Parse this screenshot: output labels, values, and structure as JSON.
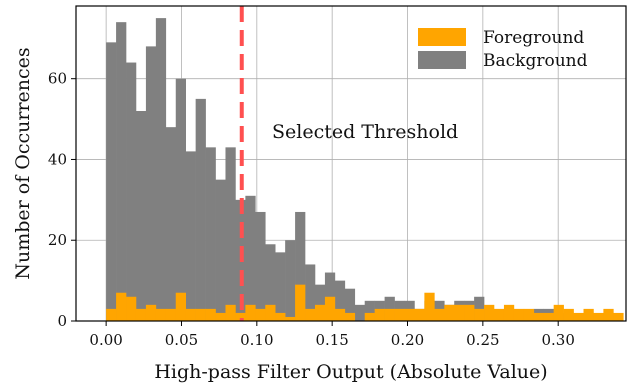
{
  "chart_data": {
    "type": "histogram",
    "xlabel": "High-pass Filter Output (Absolute Value)",
    "ylabel": "Number of Occurrences",
    "xlim": [
      -0.02,
      0.345
    ],
    "ylim": [
      0,
      78
    ],
    "xticks": [
      0.0,
      0.05,
      0.1,
      0.15,
      0.2,
      0.25,
      0.3
    ],
    "xtick_labels": [
      "0.00",
      "0.05",
      "0.10",
      "0.15",
      "0.20",
      "0.25",
      "0.30"
    ],
    "yticks": [
      0,
      20,
      40,
      60
    ],
    "ytick_labels": [
      "0",
      "20",
      "40",
      "60"
    ],
    "grid": true,
    "legend_position": "top-right",
    "bin_width": 0.0066,
    "bin_start": 0.0,
    "series": [
      {
        "name": "Background",
        "color": "#808080",
        "values": [
          69,
          74,
          64,
          52,
          68,
          75,
          48,
          60,
          42,
          55,
          43,
          35,
          43,
          30,
          31,
          27,
          19,
          17,
          20,
          27,
          14,
          9,
          12,
          10,
          8,
          4,
          5,
          5,
          6,
          5,
          5,
          3,
          5,
          5,
          4,
          5,
          5,
          6,
          3,
          2,
          3,
          2,
          2,
          3,
          3,
          2,
          2,
          1,
          2,
          1,
          0,
          0,
          0,
          0,
          0
        ]
      },
      {
        "name": "Foreground",
        "color": "#ffa500",
        "values": [
          3,
          7,
          6,
          3,
          4,
          3,
          3,
          7,
          3,
          3,
          3,
          2,
          4,
          2,
          4,
          3,
          4,
          2,
          1,
          9,
          3,
          4,
          6,
          3,
          2,
          0,
          2,
          3,
          3,
          3,
          3,
          3,
          7,
          3,
          4,
          4,
          4,
          3,
          4,
          3,
          4,
          3,
          3,
          2,
          2,
          4,
          3,
          2,
          3,
          2,
          3,
          2,
          0,
          0,
          1
        ]
      }
    ],
    "threshold": {
      "x": 0.09,
      "color": "#ff5050",
      "label": "Selected Threshold"
    }
  }
}
